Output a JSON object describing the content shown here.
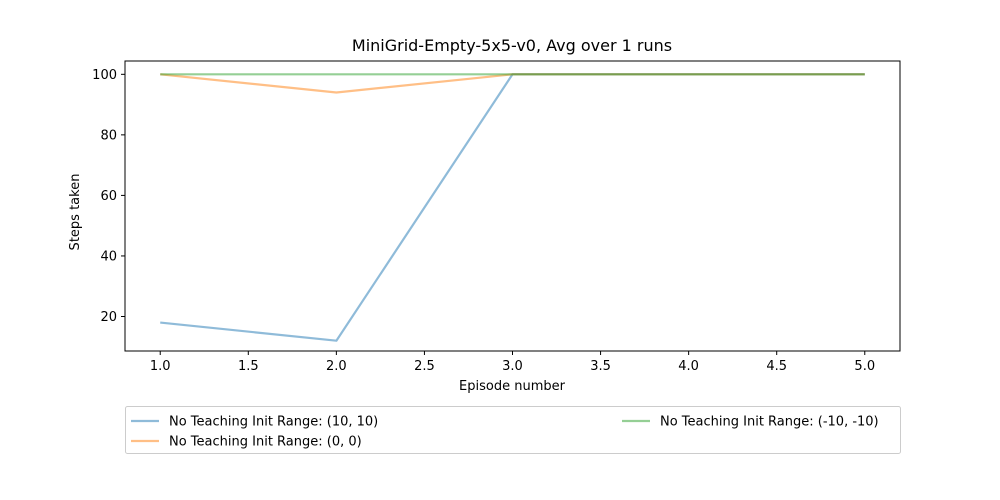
{
  "chart_data": {
    "type": "line",
    "title": "MiniGrid-Empty-5x5-v0, Avg over 1 runs",
    "xlabel": "Episode number",
    "ylabel": "Steps taken",
    "x": [
      1,
      2,
      3,
      4,
      5
    ],
    "xlim": [
      0.8,
      5.2
    ],
    "ylim": [
      8.6,
      104.4
    ],
    "xticks": [
      "1.0",
      "1.5",
      "2.0",
      "2.5",
      "3.0",
      "3.5",
      "4.0",
      "4.5",
      "5.0"
    ],
    "yticks": [
      "20",
      "40",
      "60",
      "80",
      "100"
    ],
    "grid": false,
    "legend_position": "below",
    "series": [
      {
        "name": "No Teaching Init Range: (10, 10)",
        "values": [
          18,
          12,
          100,
          100,
          100
        ],
        "color": "#1f77b4"
      },
      {
        "name": "No Teaching Init Range: (0, 0)",
        "values": [
          100,
          94,
          100,
          100,
          100
        ],
        "color": "#ff7f0e"
      },
      {
        "name": "No Teaching Init Range: (-10, -10)",
        "values": [
          100,
          100,
          100,
          100,
          100
        ],
        "color": "#2ca02c"
      }
    ]
  }
}
